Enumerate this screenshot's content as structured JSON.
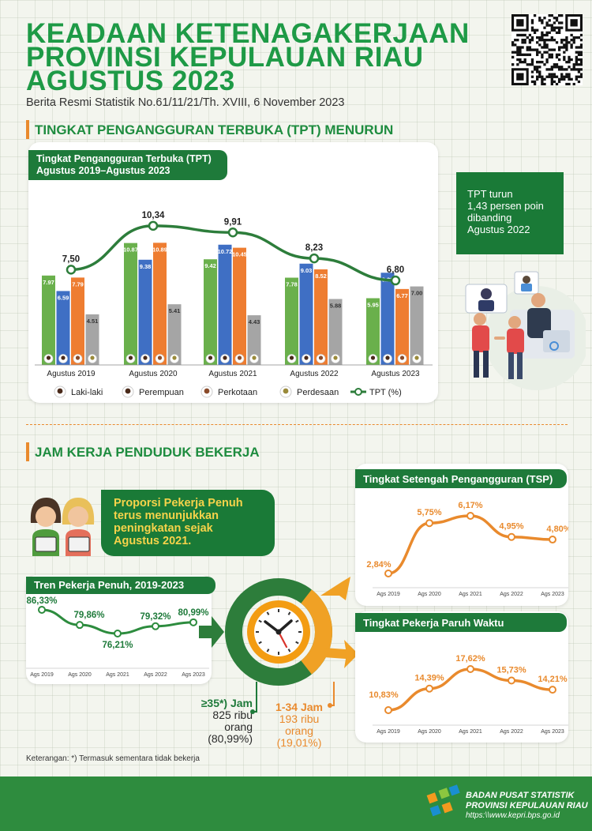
{
  "header": {
    "title_lines": [
      "KEADAAN KETENAGAKERJAAN",
      "PROVINSI KEPULAUAN RIAU",
      "AGUSTUS 2023"
    ],
    "subtitle": "Berita Resmi Statistik No.61/11/21/Th. XVIII, 6 November 2023"
  },
  "section1": {
    "heading": "TINGKAT PENGANGGURAN TERBUKA (TPT) MENURUN",
    "chart_tag_line1": "Tingkat Pengangguran Terbuka (TPT)",
    "chart_tag_line2": "Agustus 2019–Agustus 2023",
    "note_lines": [
      "TPT turun",
      "1,43 persen poin",
      "dibanding",
      "Agustus 2022"
    ],
    "legend": [
      "Laki-laki",
      "Perempuan",
      "Perkotaan",
      "Perdesaan",
      "TPT (%)"
    ]
  },
  "section2": {
    "heading": "JAM KERJA PENDUDUK BEKERJA",
    "proportion_lines": [
      "Proporsi Pekerja Penuh",
      "terus menunjukkan",
      "peningkatan sejak",
      "Agustus 2021."
    ],
    "full_time_label": "≥35*) Jam",
    "full_time_lines": [
      "825 ribu",
      "orang",
      "(80,99%)"
    ],
    "part_label": "1-34 Jam",
    "part_lines": [
      "193 ribu",
      "orang",
      "(19,01%)"
    ],
    "footnote": "Keterangan: *) Termasuk sementara tidak bekerja"
  },
  "footer": {
    "org_line1": "BADAN PUSAT STATISTIK",
    "org_line2": "PROVINSI KEPULAUAN RIAU",
    "url": "https:\\\\www.kepri.bps.go.id"
  },
  "colors": {
    "green": "#1e9a46",
    "dark_green": "#1e7a3a",
    "orange": "#e98a2d",
    "bar_male": "#6ab04c",
    "bar_female": "#3f6fc4",
    "bar_urban": "#ee7d31",
    "bar_rural": "#a5a5a5"
  },
  "icons": [
    "male-avatar-icon",
    "female-avatar-icon",
    "urban-icon",
    "rural-icon",
    "clock-icon",
    "workers-illustration",
    "qr-code"
  ],
  "chart_data": [
    {
      "type": "bar",
      "title": "Tingkat Pengangguran Terbuka (TPT) Agustus 2019–Agustus 2023",
      "categories": [
        "Agustus 2019",
        "Agustus 2020",
        "Agustus 2021",
        "Agustus 2022",
        "Agustus 2023"
      ],
      "series": [
        {
          "name": "Laki-laki",
          "values": [
            7.97,
            10.87,
            9.42,
            7.78,
            5.95
          ],
          "labels": [
            "7.97",
            "10.87",
            "9.42",
            "7.78",
            "5.95"
          ]
        },
        {
          "name": "Perempuan",
          "values": [
            6.59,
            9.38,
            10.72,
            9.03,
            8.22
          ],
          "labels": [
            "6.59",
            "9.38",
            "10.72",
            "9.03",
            "8.22"
          ]
        },
        {
          "name": "Perkotaan",
          "values": [
            7.79,
            10.89,
            10.45,
            8.52,
            6.77
          ],
          "labels": [
            "7.79",
            "10.89",
            "10.45",
            "8.52",
            "6.77"
          ]
        },
        {
          "name": "Perdesaan",
          "values": [
            4.51,
            5.41,
            4.43,
            5.88,
            7.0
          ],
          "labels": [
            "4.51",
            "5.41",
            "4.43",
            "5.88",
            "7.00"
          ]
        }
      ],
      "line": {
        "name": "TPT (%)",
        "values": [
          7.5,
          10.34,
          9.91,
          8.23,
          6.8
        ],
        "labels": [
          "7,50",
          "10,34",
          "9,91",
          "8,23",
          "6,80"
        ]
      }
    },
    {
      "type": "line",
      "title": "Tren Pekerja Penuh, 2019-2023",
      "x": [
        "Ags 2019",
        "Ags 2020",
        "Ags 2021",
        "Ags 2022",
        "Ags 2023"
      ],
      "values": [
        86.33,
        79.86,
        76.21,
        79.32,
        80.99
      ],
      "labels": [
        "86,33%",
        "79,86%",
        "76,21%",
        "79,32%",
        "80,99%"
      ]
    },
    {
      "type": "line",
      "title": "Tingkat Setengah Pengangguran (TSP)",
      "x": [
        "Ags 2019",
        "Ags 2020",
        "Ags 2021",
        "Ags 2022",
        "Ags 2023"
      ],
      "values": [
        2.84,
        5.75,
        6.17,
        4.95,
        4.8
      ],
      "labels": [
        "2,84%",
        "5,75%",
        "6,17%",
        "4,95%",
        "4,80%"
      ]
    },
    {
      "type": "line",
      "title": "Tingkat Pekerja Paruh Waktu",
      "x": [
        "Ags 2019",
        "Ags 2020",
        "Ags 2021",
        "Ags 2022",
        "Ags 2023"
      ],
      "values": [
        10.83,
        14.39,
        17.62,
        15.73,
        14.21
      ],
      "labels": [
        "10,83%",
        "14,39%",
        "17,62%",
        "15,73%",
        "14,21%"
      ]
    }
  ]
}
